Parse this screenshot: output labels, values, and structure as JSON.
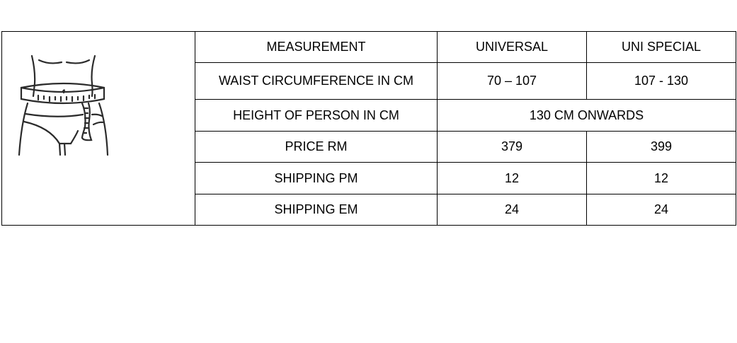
{
  "table": {
    "headers": [
      "MEASUREMENT",
      "UNIVERSAL",
      "UNI SPECIAL"
    ],
    "rows": [
      {
        "label": "WAIST CIRCUMFERENCE IN CM",
        "universal": "70 – 107",
        "uni_special": "107 - 130"
      },
      {
        "label": "HEIGHT OF PERSON IN CM",
        "merged": "130 CM ONWARDS"
      },
      {
        "label": "PRICE RM",
        "universal": "379",
        "uni_special": "399"
      },
      {
        "label": "SHIPPING PM",
        "universal": "12",
        "uni_special": "12"
      },
      {
        "label": "SHIPPING EM",
        "universal": "24",
        "uni_special": "24"
      }
    ]
  },
  "image": {
    "icon": "waist-measurement-icon"
  }
}
